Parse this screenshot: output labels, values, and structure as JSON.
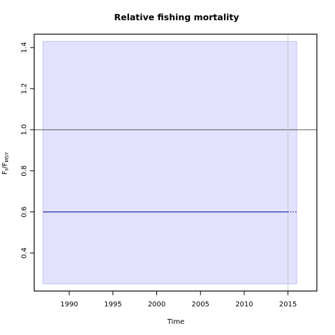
{
  "chart_data": {
    "type": "line",
    "title": "Relative fishing mortality",
    "xlabel": "Time",
    "ylabel_main": "F",
    "ylabel_sub1": "t",
    "ylabel_sep": "/F",
    "ylabel_sub2": "MSY",
    "xlim": [
      1986,
      2018.3
    ],
    "ylim": [
      0.215,
      1.465
    ],
    "x_ticks": [
      1990,
      1995,
      2000,
      2005,
      2010,
      2015
    ],
    "y_ticks": [
      0.4,
      0.6,
      0.8,
      1.0,
      1.2,
      1.4
    ],
    "reference_line": {
      "y": 1.0,
      "color": "#555555"
    },
    "vertical_line": {
      "x": 2015,
      "color": "#c8c8c8"
    },
    "confidence_band": {
      "x_start": 1987,
      "x_end": 2016,
      "lower": 0.25,
      "upper": 1.43,
      "fill": "#e2e2ff",
      "edge": "#c4c4f4"
    },
    "series": [
      {
        "x_start": 1987,
        "x_end": 2015,
        "value": 0.6,
        "style": "solid",
        "color": "#2c2cb4"
      },
      {
        "x_start": 2015,
        "x_end": 2016,
        "value": 0.6,
        "style": "dotted",
        "color": "#2c2cb4"
      }
    ],
    "grid": false,
    "legend": "none"
  }
}
